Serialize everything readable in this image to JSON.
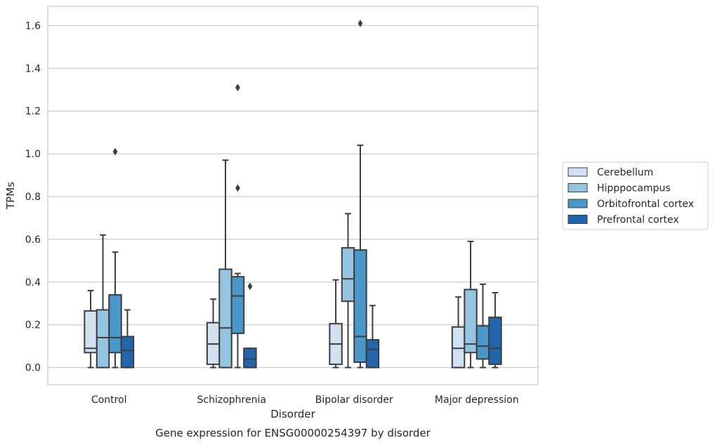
{
  "chart_data": {
    "type": "box",
    "title": "",
    "caption": "Gene expression for ENSG00000254397 by disorder",
    "xlabel": "Disorder",
    "ylabel": "TPMs",
    "ylim": [
      -0.08,
      1.69
    ],
    "yticks": [
      "0.0",
      "0.2",
      "0.4",
      "0.6",
      "0.8",
      "1.0",
      "1.2",
      "1.4",
      "1.6"
    ],
    "grid": "horizontal",
    "legend_position": "right",
    "categories": [
      "Control",
      "Schizophrenia",
      "Bipolar disorder",
      "Major depression"
    ],
    "series": [
      {
        "name": "Cerebellum",
        "color": "#d0e1f2",
        "boxes": [
          {
            "whisker_low": 0.0,
            "q1": 0.07,
            "median": 0.09,
            "q3": 0.265,
            "whisker_high": 0.36,
            "outliers": []
          },
          {
            "whisker_low": 0.0,
            "q1": 0.015,
            "median": 0.11,
            "q3": 0.21,
            "whisker_high": 0.32,
            "outliers": []
          },
          {
            "whisker_low": 0.0,
            "q1": 0.015,
            "median": 0.11,
            "q3": 0.205,
            "whisker_high": 0.41,
            "outliers": []
          },
          {
            "whisker_low": 0.0,
            "q1": 0.0,
            "median": 0.09,
            "q3": 0.19,
            "whisker_high": 0.33,
            "outliers": []
          }
        ]
      },
      {
        "name": "Hipppocampus",
        "color": "#94c4df",
        "boxes": [
          {
            "whisker_low": 0.0,
            "q1": 0.0,
            "median": 0.14,
            "q3": 0.27,
            "whisker_high": 0.62,
            "outliers": []
          },
          {
            "whisker_low": 0.0,
            "q1": 0.0,
            "median": 0.185,
            "q3": 0.46,
            "whisker_high": 0.97,
            "outliers": []
          },
          {
            "whisker_low": 0.0,
            "q1": 0.31,
            "median": 0.415,
            "q3": 0.56,
            "whisker_high": 0.72,
            "outliers": []
          },
          {
            "whisker_low": 0.0,
            "q1": 0.07,
            "median": 0.11,
            "q3": 0.365,
            "whisker_high": 0.59,
            "outliers": []
          }
        ]
      },
      {
        "name": "Orbitofrontal cortex",
        "color": "#4a98c9",
        "boxes": [
          {
            "whisker_low": 0.0,
            "q1": 0.07,
            "median": 0.14,
            "q3": 0.34,
            "whisker_high": 0.54,
            "outliers": [
              1.01
            ]
          },
          {
            "whisker_low": 0.0,
            "q1": 0.16,
            "median": 0.335,
            "q3": 0.425,
            "whisker_high": 0.44,
            "outliers": [
              0.84,
              1.31
            ]
          },
          {
            "whisker_low": 0.0,
            "q1": 0.025,
            "median": 0.145,
            "q3": 0.55,
            "whisker_high": 1.04,
            "outliers": [
              1.61
            ]
          },
          {
            "whisker_low": 0.0,
            "q1": 0.04,
            "median": 0.1,
            "q3": 0.195,
            "whisker_high": 0.39,
            "outliers": []
          }
        ]
      },
      {
        "name": "Prefrontal cortex",
        "color": "#2166ac",
        "boxes": [
          {
            "whisker_low": 0.0,
            "q1": 0.0,
            "median": 0.08,
            "q3": 0.145,
            "whisker_high": 0.27,
            "outliers": []
          },
          {
            "whisker_low": 0.0,
            "q1": 0.0,
            "median": 0.04,
            "q3": 0.09,
            "whisker_high": 0.09,
            "outliers": [
              0.38
            ]
          },
          {
            "whisker_low": 0.0,
            "q1": 0.0,
            "median": 0.085,
            "q3": 0.13,
            "whisker_high": 0.29,
            "outliers": []
          },
          {
            "whisker_low": 0.0,
            "q1": 0.015,
            "median": 0.09,
            "q3": 0.235,
            "whisker_high": 0.35,
            "outliers": []
          }
        ]
      }
    ]
  }
}
